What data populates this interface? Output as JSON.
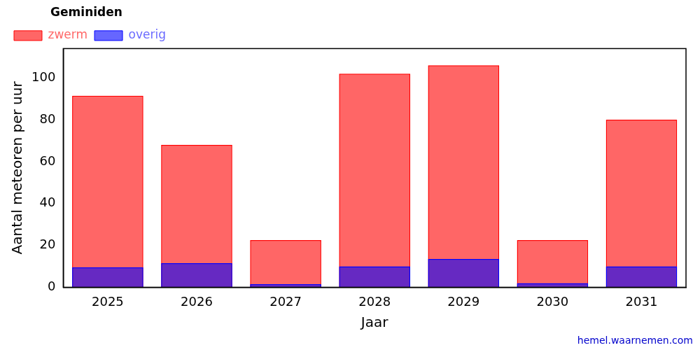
{
  "chart_data": {
    "type": "bar",
    "title": "Geminiden",
    "x_label": "Jaar",
    "y_label": "Aantal meteoren per uur",
    "annotations": [
      "hemel.waarnemen.com"
    ],
    "categories": [
      "2025",
      "2026",
      "2027",
      "2028",
      "2029",
      "2030",
      "2031"
    ],
    "series": [
      {
        "name": "zwerm",
        "color": "#ff0000",
        "values": [
          91.5,
          68,
          22.5,
          102,
          106,
          22.5,
          80
        ]
      },
      {
        "name": "overig",
        "color": "#0000ff",
        "values": [
          9.5,
          11.5,
          1.5,
          10,
          13.5,
          2,
          10
        ]
      }
    ],
    "ylim": [
      0,
      114
    ],
    "yticks": [
      0,
      20,
      40,
      60,
      80,
      100
    ],
    "grid": false,
    "legend": "top left",
    "stacked": false
  }
}
